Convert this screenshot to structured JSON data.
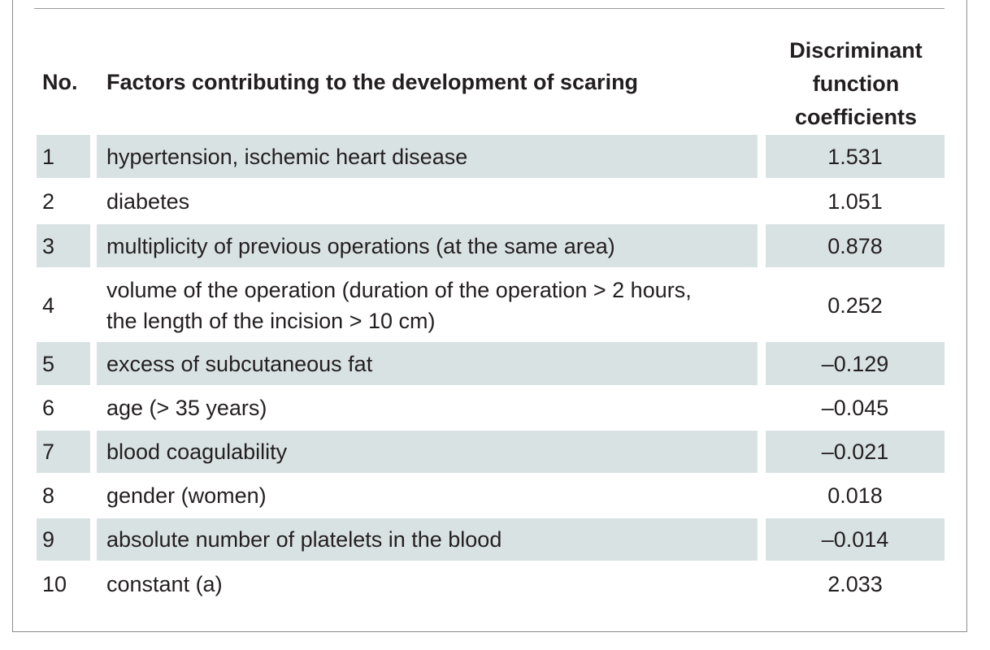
{
  "table": {
    "headers": {
      "no": "No.",
      "factor": "Factors contributing to the development of scaring",
      "coefficient": "Discriminant\nfunction\ncoefficients"
    },
    "rows": [
      {
        "no": "1",
        "factor": "hypertension, ischemic heart disease",
        "coefficient": "1.531"
      },
      {
        "no": "2",
        "factor": "diabetes",
        "coefficient": "1.051"
      },
      {
        "no": "3",
        "factor": "multiplicity of previous operations (at the same area)",
        "coefficient": "0.878"
      },
      {
        "no": "4",
        "factor": "volume of the operation (duration of the operation > 2 hours, the length of the incision > 10 cm)",
        "coefficient": "0.252"
      },
      {
        "no": "5",
        "factor": "excess of subcutaneous fat",
        "coefficient": "–0.129"
      },
      {
        "no": "6",
        "factor": "age (> 35 years)",
        "coefficient": "–0.045"
      },
      {
        "no": "7",
        "factor": "blood coagulability",
        "coefficient": "–0.021"
      },
      {
        "no": "8",
        "factor": "gender (women)",
        "coefficient": "0.018"
      },
      {
        "no": "9",
        "factor": "absolute number of platelets in the blood",
        "coefficient": "–0.014"
      },
      {
        "no": "10",
        "factor": "constant (a)",
        "coefficient": "2.033"
      }
    ]
  },
  "colors": {
    "row_shade": "#d9e2e3",
    "text": "#231f20",
    "border": "#8c8c8c"
  }
}
